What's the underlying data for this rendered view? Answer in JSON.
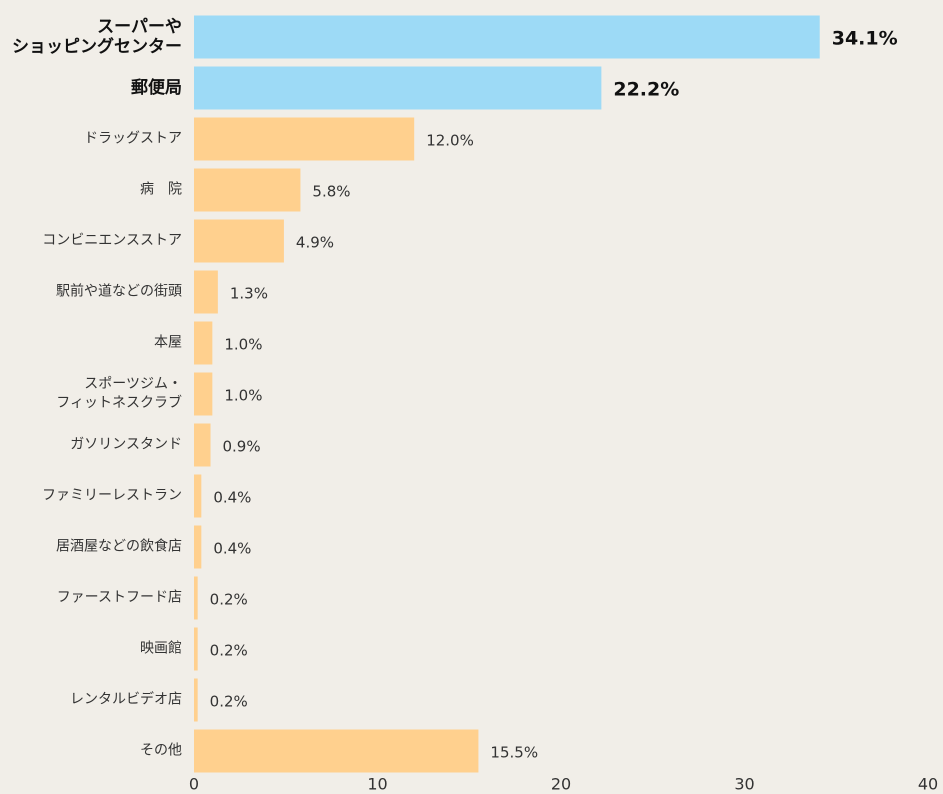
{
  "chart_data": {
    "type": "bar",
    "orientation": "horizontal",
    "categories": [
      "スーパーや\nショッピングセンター",
      "郵便局",
      "ドラッグストア",
      "病　院",
      "コンビニエンスストア",
      "駅前や道などの街頭",
      "本屋",
      "スポーツジム・\nフィットネスクラブ",
      "ガソリンスタンド",
      "ファミリーレストラン",
      "居酒屋などの飲食店",
      "ファーストフード店",
      "映画館",
      "レンタルビデオ店",
      "その他"
    ],
    "values": [
      34.1,
      22.2,
      12.0,
      5.8,
      4.9,
      1.3,
      1.0,
      1.0,
      0.9,
      0.4,
      0.4,
      0.2,
      0.2,
      0.2,
      15.5
    ],
    "value_labels": [
      "34.1%",
      "22.2%",
      "12.0%",
      "5.8%",
      "4.9%",
      "1.3%",
      "1.0%",
      "1.0%",
      "0.9%",
      "0.4%",
      "0.4%",
      "0.2%",
      "0.2%",
      "0.2%",
      "15.5%"
    ],
    "colors": [
      "#9ddaf6",
      "#9ddaf6",
      "#ffd08e",
      "#ffd08e",
      "#ffd08e",
      "#ffd08e",
      "#ffd08e",
      "#ffd08e",
      "#ffd08e",
      "#ffd08e",
      "#ffd08e",
      "#ffd08e",
      "#ffd08e",
      "#ffd08e",
      "#ffd08e"
    ],
    "xlim": [
      0,
      40
    ],
    "xticks": [
      0,
      10,
      20,
      30,
      40
    ],
    "grid": false
  }
}
